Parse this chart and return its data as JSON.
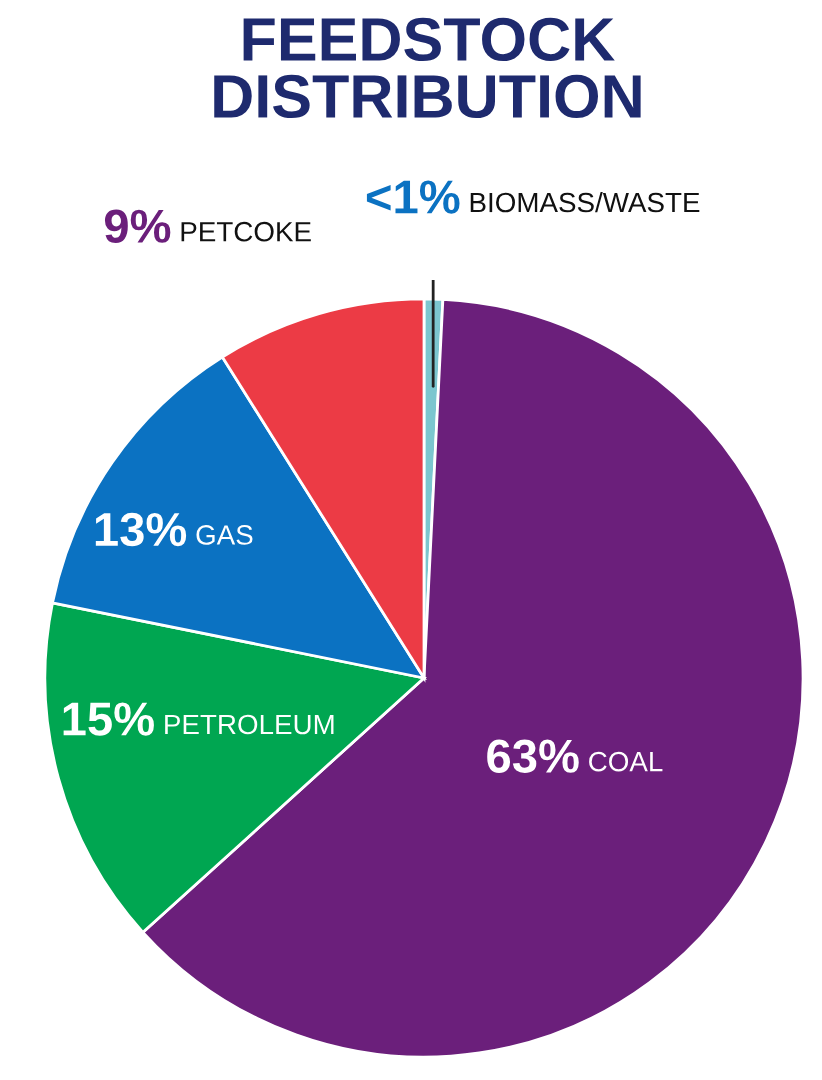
{
  "chart_data": {
    "type": "pie",
    "title": "FEEDSTOCK\nDISTRIBUTION",
    "categories": [
      "BIOMASS/WASTE",
      "COAL",
      "PETROLEUM",
      "GAS",
      "PETCOKE"
    ],
    "values": [
      0.8,
      63,
      15,
      13,
      9
    ],
    "value_labels": [
      "<1%",
      "63%",
      "15%",
      "13%",
      "9%"
    ],
    "colors": [
      "#7cc6cf",
      "#6b1f7b",
      "#00a651",
      "#0b72c2",
      "#ec3b45"
    ],
    "legend": false
  }
}
